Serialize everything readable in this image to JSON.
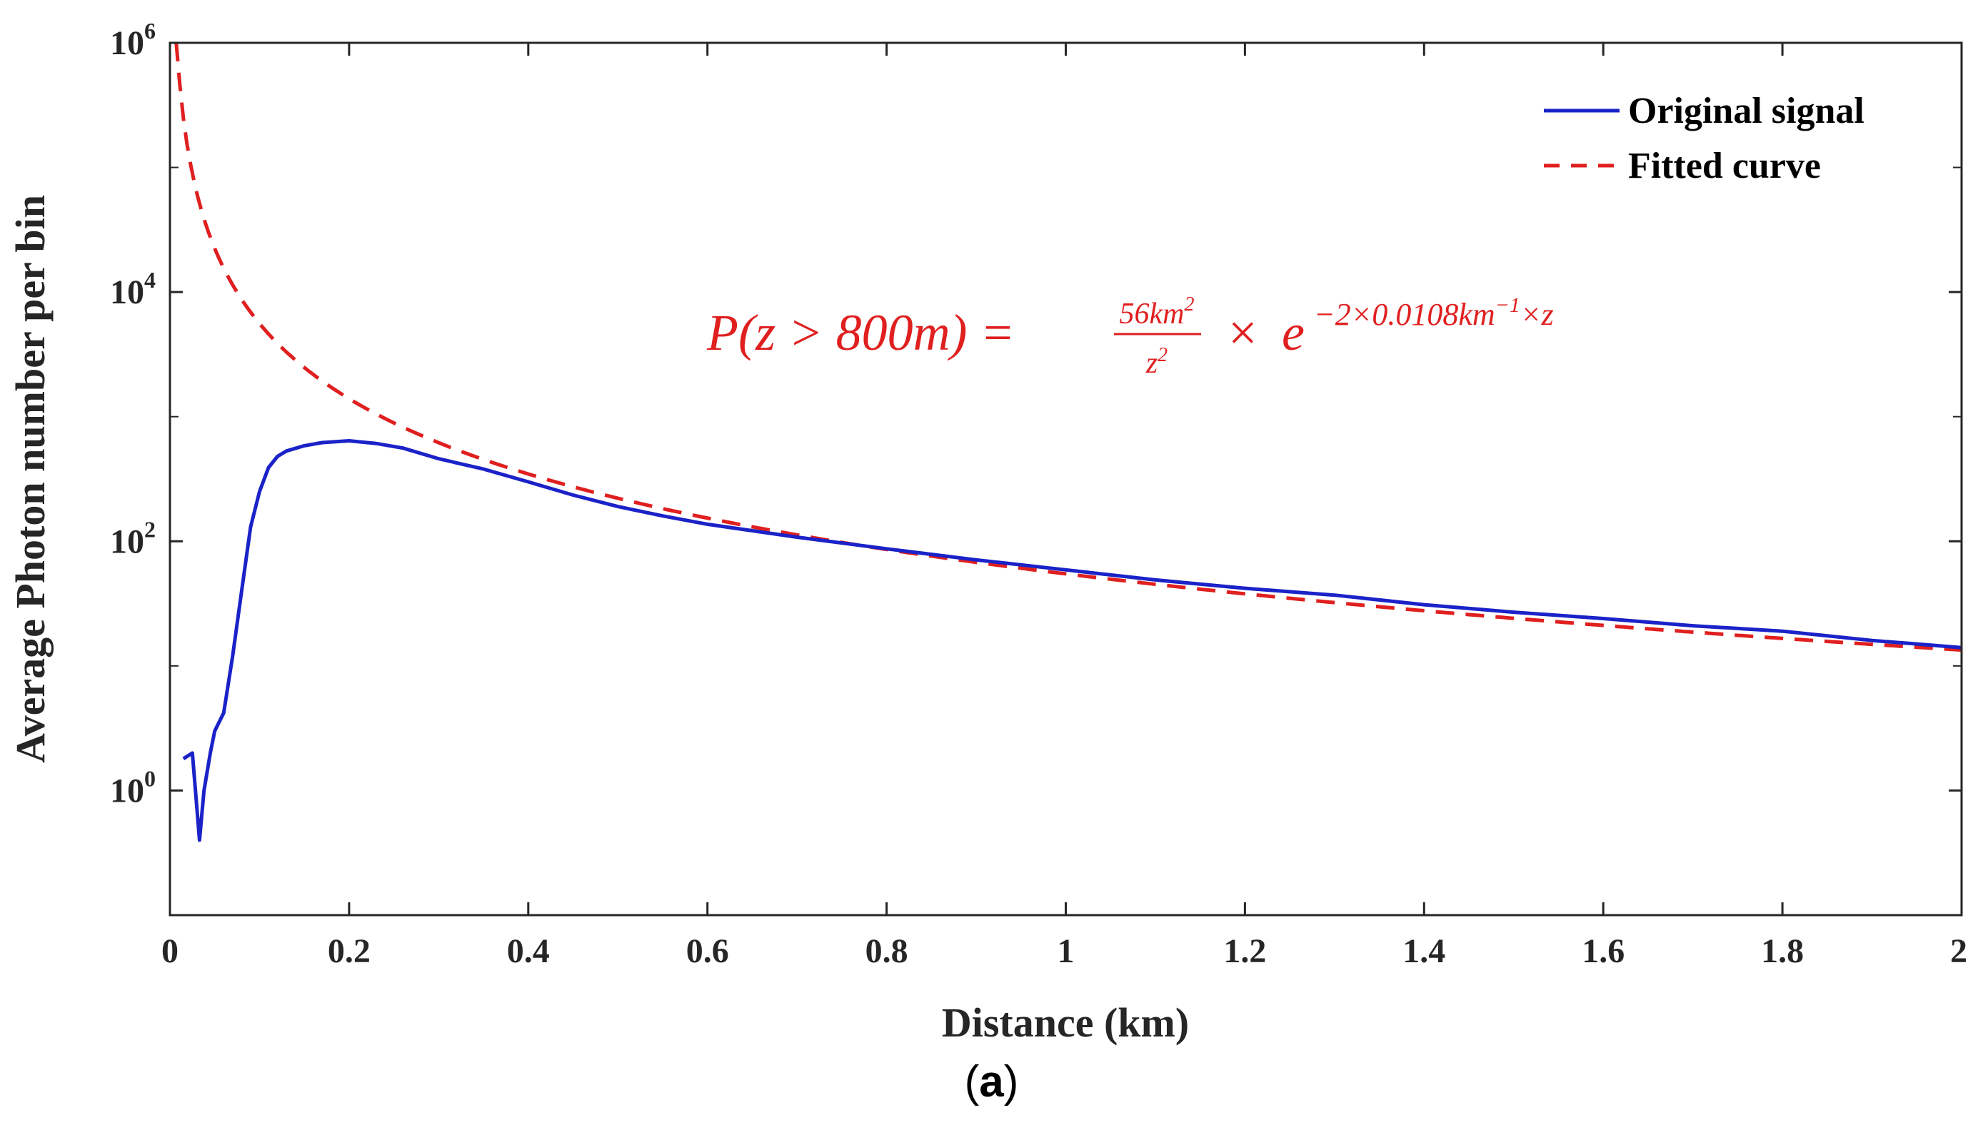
{
  "chart_data": {
    "type": "line",
    "title": "",
    "xlabel": "Distance (km)",
    "ylabel": "Average Photon number per bin",
    "xlim": [
      0,
      2
    ],
    "ylim": [
      0.1,
      1000000
    ],
    "yscale": "log",
    "x_ticks": [
      "0",
      "0.2",
      "0.4",
      "0.6",
      "0.8",
      "1",
      "1.2",
      "1.4",
      "1.6",
      "1.8",
      "2"
    ],
    "x_tick_values": [
      0,
      0.2,
      0.4,
      0.6,
      0.8,
      1.0,
      1.2,
      1.4,
      1.6,
      1.8,
      2.0
    ],
    "y_ticks": [
      {
        "value": 1,
        "base": "10",
        "exp": "0"
      },
      {
        "value": 100,
        "base": "10",
        "exp": "2"
      },
      {
        "value": 10000,
        "base": "10",
        "exp": "4"
      },
      {
        "value": 1000000,
        "base": "10",
        "exp": "6"
      }
    ],
    "legend_position": "top-right",
    "series": [
      {
        "name": "Original signal",
        "color": "#1a22c8",
        "style": "solid",
        "x": [
          0.015,
          0.025,
          0.033,
          0.038,
          0.045,
          0.05,
          0.06,
          0.07,
          0.08,
          0.09,
          0.1,
          0.11,
          0.12,
          0.13,
          0.15,
          0.17,
          0.2,
          0.23,
          0.26,
          0.3,
          0.35,
          0.4,
          0.45,
          0.5,
          0.55,
          0.6,
          0.7,
          0.8,
          0.9,
          1.0,
          1.1,
          1.2,
          1.3,
          1.4,
          1.5,
          1.6,
          1.7,
          1.8,
          1.9,
          1.95,
          2.0
        ],
        "y": [
          1.8,
          2.0,
          0.4,
          1.0,
          2.0,
          3.0,
          4.2,
          12,
          40,
          130,
          250,
          390,
          480,
          530,
          585,
          620,
          640,
          610,
          560,
          460,
          380,
          300,
          235,
          190,
          160,
          137,
          108,
          87,
          71,
          59,
          49,
          42,
          37,
          31,
          27,
          24,
          21,
          19,
          16,
          15,
          14
        ]
      },
      {
        "name": "Fitted curve",
        "color": "#e01f1f",
        "style": "dashed",
        "function": "56/z^2*exp(-2*0.0108*z)",
        "x_range": [
          0.007,
          2.0
        ]
      }
    ],
    "annotation": "P(z > 800m) = 56km²/z² × e^(−2×0.0108km⁻¹×z)"
  },
  "annotation_parts": {
    "lhs": "P(z > 800m) =",
    "numerator": "56km",
    "numerator_exp": "2",
    "denominator": "z",
    "denominator_exp": "2",
    "times": "×",
    "exp_base": "e",
    "exponent": "−2×0.0108km",
    "exponent_sup": "−1",
    "exponent_tail": "×z"
  },
  "panel_label": {
    "open": "(",
    "letter": "a",
    "close": ")"
  }
}
